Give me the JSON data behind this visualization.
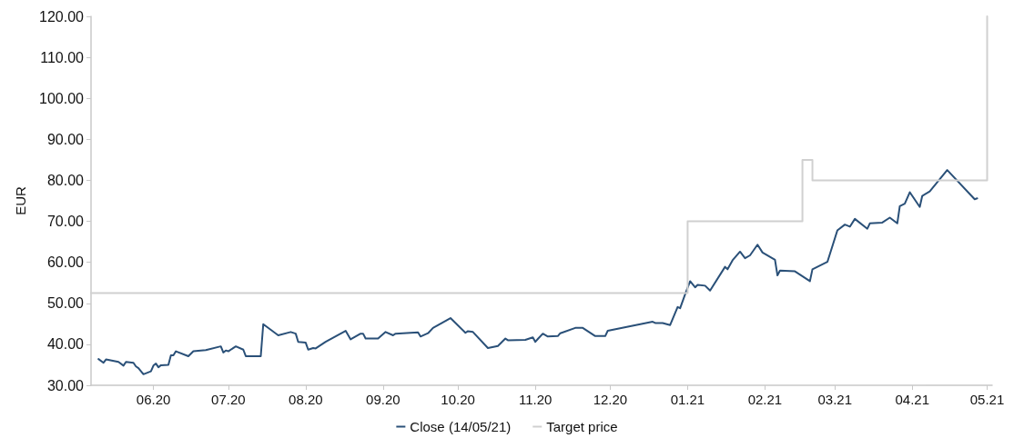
{
  "chart_data": {
    "type": "line",
    "ylabel": "EUR",
    "xlim": [
      "2020-05-07",
      "2021-05-03"
    ],
    "ylim": [
      30,
      120
    ],
    "yticks": [
      {
        "value": 30,
        "label": "30.00"
      },
      {
        "value": 40,
        "label": "40.00"
      },
      {
        "value": 50,
        "label": "50.00"
      },
      {
        "value": 60,
        "label": "60.00"
      },
      {
        "value": 70,
        "label": "70.00"
      },
      {
        "value": 80,
        "label": "80.00"
      },
      {
        "value": 90,
        "label": "90.00"
      },
      {
        "value": 100,
        "label": "100.00"
      },
      {
        "value": 110,
        "label": "110.00"
      },
      {
        "value": 120,
        "label": "120.00"
      }
    ],
    "xticks": [
      {
        "value": "2020-06-01",
        "label": "06.20"
      },
      {
        "value": "2020-07-01",
        "label": "07.20"
      },
      {
        "value": "2020-08-01",
        "label": "08.20"
      },
      {
        "value": "2020-09-01",
        "label": "09.20"
      },
      {
        "value": "2020-10-01",
        "label": "10.20"
      },
      {
        "value": "2020-11-01",
        "label": "11.20"
      },
      {
        "value": "2020-12-01",
        "label": "12.20"
      },
      {
        "value": "2021-01-01",
        "label": "01.21"
      },
      {
        "value": "2021-02-01",
        "label": "02.21"
      },
      {
        "value": "2021-03-01",
        "label": "03.21"
      },
      {
        "value": "2021-04-01",
        "label": "04.21"
      },
      {
        "value": "2021-05-01",
        "label": "05.21"
      }
    ],
    "grid": false,
    "legend": "bottom",
    "marker": "none",
    "line_style": "solid",
    "series": [
      {
        "name": "Close (14/05/21)",
        "color": "#2a5078",
        "x": [
          "2020-05-10",
          "2020-05-12",
          "2020-05-13",
          "2020-05-18",
          "2020-05-20",
          "2020-05-21",
          "2020-05-24",
          "2020-05-25",
          "2020-05-26",
          "2020-05-28",
          "2020-05-31",
          "2020-06-01",
          "2020-06-02",
          "2020-06-03",
          "2020-06-04",
          "2020-06-07",
          "2020-06-08",
          "2020-06-09",
          "2020-06-10",
          "2020-06-15",
          "2020-06-17",
          "2020-06-22",
          "2020-06-28",
          "2020-06-29",
          "2020-06-30",
          "2020-07-01",
          "2020-07-04",
          "2020-07-07",
          "2020-07-08",
          "2020-07-14",
          "2020-07-15",
          "2020-07-21",
          "2020-07-26",
          "2020-07-28",
          "2020-07-29",
          "2020-08-01",
          "2020-08-02",
          "2020-08-04",
          "2020-08-05",
          "2020-08-09",
          "2020-08-17",
          "2020-08-19",
          "2020-08-23",
          "2020-08-24",
          "2020-08-25",
          "2020-08-30",
          "2020-09-02",
          "2020-09-05",
          "2020-09-06",
          "2020-09-15",
          "2020-09-16",
          "2020-09-19",
          "2020-09-21",
          "2020-09-28",
          "2020-10-04",
          "2020-10-05",
          "2020-10-07",
          "2020-10-13",
          "2020-10-17",
          "2020-10-20",
          "2020-10-21",
          "2020-10-28",
          "2020-10-31",
          "2020-11-01",
          "2020-11-02",
          "2020-11-04",
          "2020-11-06",
          "2020-11-10",
          "2020-11-11",
          "2020-11-17",
          "2020-11-20",
          "2020-11-25",
          "2020-11-29",
          "2020-11-30",
          "2020-12-18",
          "2020-12-19",
          "2020-12-22",
          "2020-12-25",
          "2020-12-28",
          "2020-12-29",
          "2020-12-31",
          "2021-01-02",
          "2021-01-04",
          "2021-01-05",
          "2021-01-08",
          "2021-01-10",
          "2021-01-16",
          "2021-01-17",
          "2021-01-19",
          "2021-01-22",
          "2021-01-24",
          "2021-01-26",
          "2021-01-29",
          "2021-01-31",
          "2021-02-05",
          "2021-02-06",
          "2021-02-07",
          "2021-02-13",
          "2021-02-19",
          "2021-02-20",
          "2021-02-26",
          "2021-03-02",
          "2021-03-05",
          "2021-03-07",
          "2021-03-09",
          "2021-03-14",
          "2021-03-15",
          "2021-03-20",
          "2021-03-23",
          "2021-03-26",
          "2021-03-27",
          "2021-03-29",
          "2021-03-31",
          "2021-04-04",
          "2021-04-05",
          "2021-04-08",
          "2021-04-15",
          "2021-04-26",
          "2021-04-27"
        ],
        "values": [
          36.4,
          35.5,
          36.3,
          35.7,
          34.8,
          35.7,
          35.5,
          34.6,
          34.2,
          32.7,
          33.4,
          34.8,
          35.3,
          34.4,
          34.9,
          35.0,
          37.3,
          37.3,
          38.3,
          37.1,
          38.3,
          38.6,
          39.5,
          38.0,
          38.5,
          38.3,
          39.5,
          38.7,
          37.1,
          37.1,
          44.9,
          42.2,
          43.0,
          42.6,
          40.6,
          40.4,
          38.7,
          39.1,
          39.0,
          40.6,
          43.3,
          41.2,
          42.6,
          42.6,
          41.4,
          41.4,
          43.0,
          42.2,
          42.6,
          42.9,
          41.9,
          42.7,
          44.0,
          46.4,
          42.8,
          43.2,
          43.0,
          39.1,
          39.6,
          41.4,
          41.0,
          41.1,
          41.7,
          40.6,
          41.3,
          42.6,
          41.9,
          42.0,
          42.7,
          44.0,
          44.0,
          42.0,
          42.0,
          43.3,
          45.5,
          45.2,
          45.2,
          44.7,
          49.1,
          48.8,
          52.2,
          55.4,
          53.9,
          54.5,
          54.3,
          53.1,
          58.9,
          58.3,
          60.5,
          62.6,
          61.0,
          61.7,
          64.3,
          62.4,
          60.6,
          56.8,
          58.0,
          57.8,
          55.4,
          58.3,
          60.1,
          67.8,
          69.2,
          68.7,
          70.6,
          68.2,
          69.5,
          69.7,
          70.9,
          69.5,
          73.7,
          74.3,
          77.1,
          73.5,
          76.2,
          77.3,
          82.5,
          75.4,
          75.6
        ]
      },
      {
        "name": "Target price",
        "type": "step",
        "color": "#d0d0d0",
        "x": [
          "2020-05-07",
          "2021-01-01",
          "2021-02-16",
          "2021-02-20",
          "2021-05-01"
        ],
        "values": [
          52.5,
          70,
          85,
          80,
          120
        ]
      }
    ]
  }
}
